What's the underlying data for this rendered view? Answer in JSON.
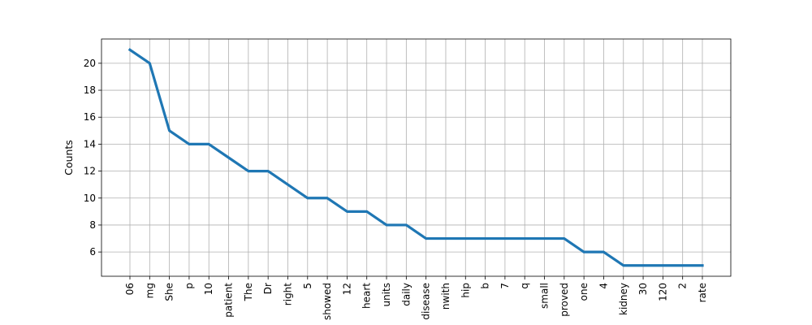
{
  "chart_data": {
    "type": "line",
    "title": "",
    "xlabel": "",
    "ylabel": "Counts",
    "categories": [
      "06",
      "mg",
      "She",
      "p",
      "10",
      "patient",
      "The",
      "Dr",
      "right",
      "5",
      "showed",
      "12",
      "heart",
      "units",
      "daily",
      "disease",
      "nwith",
      "hip",
      "b",
      "7",
      "q",
      "small",
      "proved",
      "one",
      "4",
      "kidney",
      "30",
      "120",
      "2",
      "rate"
    ],
    "series": [
      {
        "values": [
          21,
          20,
          15,
          14,
          14,
          13,
          12,
          12,
          11,
          10,
          10,
          9,
          9,
          8,
          8,
          7,
          7,
          7,
          7,
          7,
          7,
          7,
          7,
          6,
          6,
          5,
          5,
          5,
          5,
          5
        ]
      }
    ],
    "ylim": [
      4.2,
      21.8
    ],
    "yticks": [
      6,
      8,
      10,
      12,
      14,
      16,
      18,
      20
    ],
    "grid": true,
    "line_color": "#1f77b4"
  }
}
